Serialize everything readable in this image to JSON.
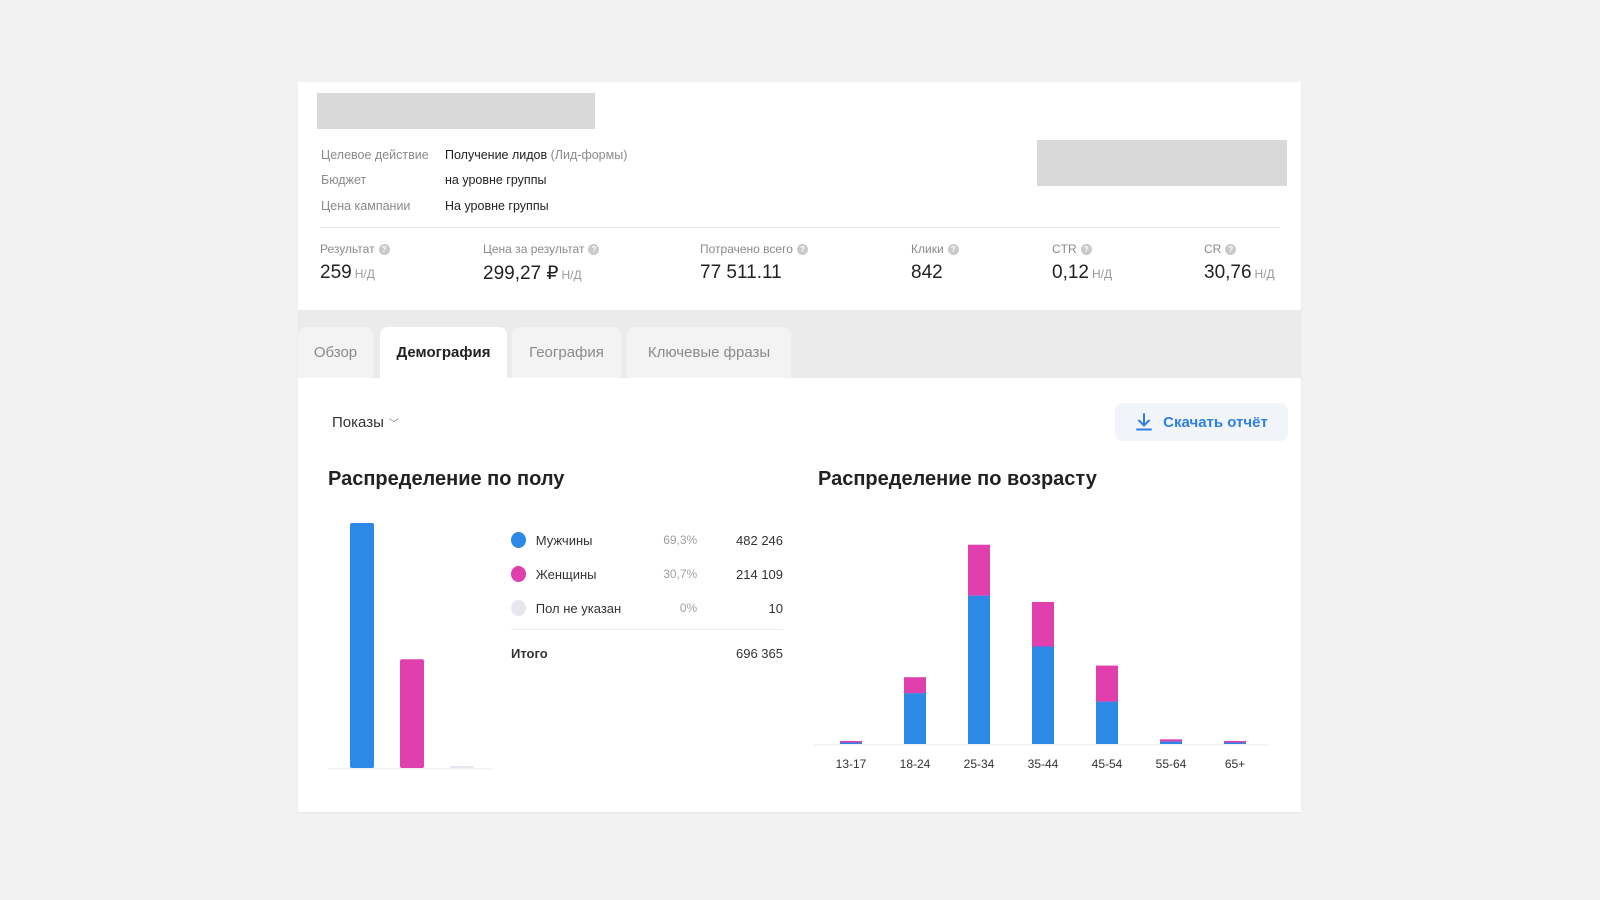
{
  "header": {
    "info": [
      {
        "label": "Целевое действие",
        "value": "Получение лидов",
        "value_muted": "(Лид-формы)"
      },
      {
        "label": "Бюджет",
        "value": "на уровне группы",
        "value_muted": ""
      },
      {
        "label": "Цена кампании",
        "value": "На уровне группы",
        "value_muted": ""
      }
    ],
    "stats": [
      {
        "label": "Результат",
        "value": "259",
        "suffix": "Н/Д"
      },
      {
        "label": "Цена за результат",
        "value": "299,27 ₽",
        "suffix": "Н/Д"
      },
      {
        "label": "Потрачено всего",
        "value": "77 511.11",
        "suffix": ""
      },
      {
        "label": "Клики",
        "value": "842",
        "suffix": ""
      },
      {
        "label": "CTR",
        "value": "0,12",
        "suffix": "Н/Д"
      },
      {
        "label": "CR",
        "value": "30,76",
        "suffix": "Н/Д"
      }
    ],
    "help_glyph": "?"
  },
  "tabs": [
    {
      "label": "Обзор",
      "active": false
    },
    {
      "label": "Демография",
      "active": true
    },
    {
      "label": "География",
      "active": false
    },
    {
      "label": "Ключевые фразы",
      "active": false
    }
  ],
  "toolbar": {
    "metric": "Показы",
    "download_label": "Скачать отчёт"
  },
  "gender": {
    "title": "Распределение по полу",
    "items": [
      {
        "name": "Мужчины",
        "pct": "69,3%",
        "value": "482 246",
        "color": "#2d88e6",
        "num": 482246
      },
      {
        "name": "Женщины",
        "pct": "30,7%",
        "value": "214 109",
        "color": "#e03fae",
        "num": 214109
      },
      {
        "name": "Пол не указан",
        "pct": "0%",
        "value": "10",
        "color": "#e6e7ee",
        "num": 10
      }
    ],
    "total_label": "Итого",
    "total_value": "696 365"
  },
  "chart_data": {
    "type": "bar",
    "title": "Распределение по возрасту",
    "categories": [
      "13-17",
      "18-24",
      "25-34",
      "35-44",
      "45-54",
      "55-64",
      "65+"
    ],
    "stacked": true,
    "series": [
      {
        "name": "Мужчины",
        "color": "#2d88e6",
        "values": [
          300,
          24000,
          70000,
          46000,
          20000,
          1200,
          700
        ]
      },
      {
        "name": "Женщины",
        "color": "#e03fae",
        "values": [
          400,
          7500,
          24000,
          21000,
          17000,
          1000,
          100
        ]
      }
    ],
    "ylim": [
      0,
      100000
    ],
    "grid": false
  }
}
